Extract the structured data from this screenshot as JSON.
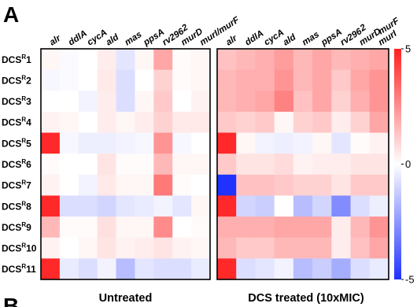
{
  "panel_letters": [
    "A",
    "B"
  ],
  "colors": {
    "high": "#ff2020",
    "mid": "#ffffff",
    "low": "#1f32ff",
    "frame": "#000000"
  },
  "chart_data": {
    "type": "heatmap",
    "columns": [
      "alr",
      "ddlA",
      "cycA",
      "ald",
      "mas",
      "ppsA",
      "rv296",
      "murD",
      "murI/murF"
    ],
    "column_prefix": "2",
    "column_extra": "murF",
    "column_extra_suffix": "murI",
    "rows": [
      {
        "prefix": "DCS",
        "sup": "R",
        "num": "1"
      },
      {
        "prefix": "DCS",
        "sup": "R",
        "num": "2"
      },
      {
        "prefix": "DCS",
        "sup": "R",
        "num": "3"
      },
      {
        "prefix": "DCS",
        "sup": "R",
        "num": "4"
      },
      {
        "prefix": "DCS",
        "sup": "R",
        "num": "5"
      },
      {
        "prefix": "DCS",
        "sup": "R",
        "num": "6"
      },
      {
        "prefix": "DCS",
        "sup": "R",
        "num": "7"
      },
      {
        "prefix": "DCS",
        "sup": "R",
        "num": "8"
      },
      {
        "prefix": "DCS",
        "sup": "R",
        "num": "9"
      },
      {
        "prefix": "DCS",
        "sup": "R",
        "num": "10"
      },
      {
        "prefix": "DCS",
        "sup": "R",
        "num": "11"
      }
    ],
    "panels": [
      {
        "label": "Untreated",
        "values": [
          [
            0.2,
            -0.1,
            0.0,
            0.4,
            -0.6,
            0.2,
            2.0,
            0.1,
            0.2
          ],
          [
            -0.2,
            -0.1,
            0.0,
            0.5,
            -0.8,
            0.0,
            1.0,
            0.1,
            0.2
          ],
          [
            0.0,
            0.0,
            -0.3,
            0.4,
            -0.8,
            0.2,
            1.2,
            0.0,
            0.3
          ],
          [
            0.3,
            0.2,
            0.0,
            0.4,
            0.2,
            0.4,
            1.0,
            0.5,
            0.5
          ],
          [
            4.8,
            -0.2,
            -0.4,
            -0.4,
            -0.3,
            -0.2,
            2.4,
            -0.2,
            0.0
          ],
          [
            0.1,
            0.0,
            0.0,
            0.6,
            0.1,
            0.1,
            1.6,
            0.2,
            0.2
          ],
          [
            0.3,
            0.0,
            -0.3,
            0.5,
            0.2,
            0.2,
            3.0,
            0.1,
            0.0
          ],
          [
            4.8,
            -0.8,
            -0.8,
            -1.0,
            -0.6,
            -0.5,
            -0.3,
            -0.6,
            0.2
          ],
          [
            1.6,
            0.1,
            0.1,
            0.7,
            0.2,
            0.2,
            2.6,
            0.0,
            0.1
          ],
          [
            0.3,
            0.0,
            0.2,
            0.6,
            0.3,
            0.4,
            0.6,
            0.3,
            0.2
          ],
          [
            4.8,
            -0.5,
            -0.8,
            -0.3,
            -1.6,
            -0.6,
            -0.8,
            -0.8,
            -0.5
          ]
        ]
      },
      {
        "label": "DCS treated (10xMIC)",
        "values": [
          [
            1.4,
            1.6,
            1.8,
            2.2,
            1.6,
            2.0,
            1.6,
            1.8,
            2.0
          ],
          [
            1.6,
            1.8,
            1.8,
            2.4,
            1.6,
            2.0,
            1.2,
            2.0,
            2.4
          ],
          [
            1.6,
            1.8,
            2.0,
            2.8,
            1.4,
            2.0,
            1.0,
            1.8,
            2.4
          ],
          [
            1.2,
            1.0,
            1.2,
            0.2,
            1.0,
            1.2,
            0.4,
            1.0,
            2.0
          ],
          [
            4.8,
            0.2,
            -0.3,
            -0.4,
            -0.3,
            0.2,
            -0.6,
            0.1,
            0.3
          ],
          [
            1.2,
            0.6,
            0.6,
            0.8,
            0.3,
            0.4,
            0.4,
            0.6,
            0.6
          ],
          [
            -5.0,
            1.4,
            1.4,
            1.2,
            1.0,
            1.0,
            0.6,
            1.2,
            1.2
          ],
          [
            4.8,
            -1.0,
            -1.2,
            0.0,
            -1.6,
            -1.0,
            -2.8,
            -0.8,
            -0.4
          ],
          [
            1.8,
            1.8,
            1.8,
            2.0,
            2.0,
            2.0,
            0.4,
            1.6,
            2.4
          ],
          [
            1.6,
            1.2,
            1.2,
            1.6,
            1.6,
            1.6,
            0.4,
            1.4,
            2.0
          ],
          [
            4.8,
            -0.8,
            -0.6,
            -0.3,
            -1.6,
            -1.2,
            -2.0,
            -0.8,
            -0.5
          ]
        ]
      }
    ],
    "colorbar": {
      "min": -5,
      "max": 5,
      "ticks": [
        5,
        0,
        -5
      ]
    }
  }
}
